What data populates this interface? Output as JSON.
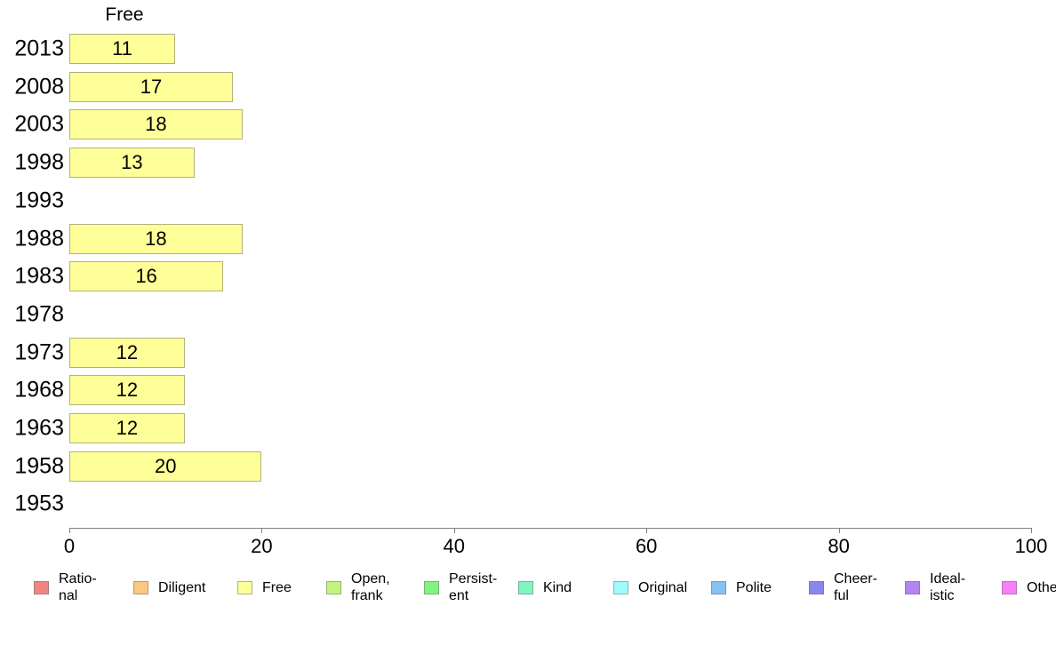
{
  "chart_data": {
    "type": "bar",
    "orientation": "horizontal",
    "title": "Free",
    "categories": [
      "2013",
      "2008",
      "2003",
      "1998",
      "1993",
      "1988",
      "1983",
      "1978",
      "1973",
      "1968",
      "1963",
      "1958",
      "1953"
    ],
    "values": [
      11,
      17,
      18,
      13,
      null,
      18,
      16,
      null,
      12,
      12,
      12,
      20,
      null
    ],
    "xlabel": "",
    "ylabel": "",
    "xlim": [
      0,
      100
    ],
    "x_ticks": [
      0,
      20,
      40,
      60,
      80,
      100
    ],
    "grid": false,
    "legend_position": "bottom",
    "bar_color": "#ffff99",
    "bar_border_color": "#b2b284",
    "value_labels": "inside-center"
  },
  "axis": {
    "line_color": "#808080",
    "label_color": "#000000"
  },
  "legend": {
    "items": [
      {
        "label": "Rational",
        "lines": [
          "Ratio-",
          "nal"
        ],
        "color": "#f28383",
        "border": "#b07979"
      },
      {
        "label": "Diligent",
        "lines": [
          "Diligent"
        ],
        "color": "#fcc87f",
        "border": "#b59b77"
      },
      {
        "label": "Free",
        "lines": [
          "Free"
        ],
        "color": "#ffff99",
        "border": "#b2b284"
      },
      {
        "label": "Open, frank",
        "lines": [
          "Open,",
          "frank"
        ],
        "color": "#c2f57d",
        "border": "#98b276"
      },
      {
        "label": "Persistent",
        "lines": [
          "Persist-",
          "ent"
        ],
        "color": "#7ff57f",
        "border": "#77b277"
      },
      {
        "label": "Kind",
        "lines": [
          "Kind"
        ],
        "color": "#7ff5c0",
        "border": "#77b297"
      },
      {
        "label": "Original",
        "lines": [
          "Original"
        ],
        "color": "#9efcfc",
        "border": "#86b5b5"
      },
      {
        "label": "Polite",
        "lines": [
          "Polite"
        ],
        "color": "#85c1f5",
        "border": "#7a98b2"
      },
      {
        "label": "Cheerful",
        "lines": [
          "Cheer-",
          "ful"
        ],
        "color": "#8887ee",
        "border": "#7b7bae"
      },
      {
        "label": "Idealistic",
        "lines": [
          "Ideal-",
          "istic"
        ],
        "color": "#b285f2",
        "border": "#907ab0"
      },
      {
        "label": "Other",
        "lines": [
          "Other"
        ],
        "color": "#fa7dfa",
        "border": "#b476b4"
      }
    ]
  }
}
